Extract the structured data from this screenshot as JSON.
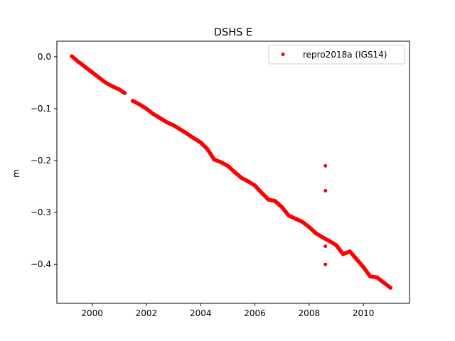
{
  "chart_data": {
    "type": "scatter",
    "title": "DSHS E",
    "xlabel": "",
    "ylabel": "m",
    "xlim": [
      1998.7,
      2011.7
    ],
    "ylim": [
      -0.475,
      0.03
    ],
    "xticks": [
      2000,
      2002,
      2004,
      2006,
      2008,
      2010
    ],
    "xtick_labels": [
      "2000",
      "2002",
      "2004",
      "2006",
      "2008",
      "2010"
    ],
    "yticks": [
      0.0,
      -0.1,
      -0.2,
      -0.3,
      -0.4
    ],
    "ytick_labels": [
      "0.0",
      "−0.1",
      "−0.2",
      "−0.3",
      "−0.4"
    ],
    "grid": false,
    "legend_position": "top-right",
    "colors": {
      "series": "#ff0000"
    },
    "series": [
      {
        "name": "repro2018a (IGS14)",
        "marker": "circle",
        "segments": [
          {
            "x": [
              1999.25,
              1999.5,
              1999.75,
              2000.0,
              2000.25,
              2000.5,
              2000.75,
              2001.0,
              2001.2
            ],
            "y": [
              0.001,
              -0.01,
              -0.02,
              -0.03,
              -0.04,
              -0.05,
              -0.057,
              -0.063,
              -0.07
            ]
          },
          {
            "x": [
              2001.5,
              2001.75,
              2002.0,
              2002.25,
              2002.5,
              2002.75,
              2003.0,
              2003.25,
              2003.5,
              2003.75,
              2004.0,
              2004.25,
              2004.5,
              2004.75,
              2005.0,
              2005.25,
              2005.5,
              2005.75,
              2006.0,
              2006.25,
              2006.5,
              2006.75,
              2007.0,
              2007.25,
              2007.5,
              2007.75,
              2008.0,
              2008.25,
              2008.5,
              2008.75,
              2009.0,
              2009.25,
              2009.5,
              2009.75,
              2010.0,
              2010.25,
              2010.5,
              2010.75,
              2011.0
            ],
            "y": [
              -0.085,
              -0.092,
              -0.1,
              -0.11,
              -0.118,
              -0.126,
              -0.132,
              -0.14,
              -0.148,
              -0.157,
              -0.165,
              -0.178,
              -0.198,
              -0.203,
              -0.21,
              -0.222,
              -0.233,
              -0.24,
              -0.248,
              -0.262,
              -0.275,
              -0.278,
              -0.29,
              -0.306,
              -0.312,
              -0.318,
              -0.328,
              -0.34,
              -0.348,
              -0.355,
              -0.363,
              -0.38,
              -0.375,
              -0.39,
              -0.405,
              -0.423,
              -0.425,
              -0.435,
              -0.445
            ]
          }
        ],
        "outliers": {
          "x": [
            2008.6,
            2008.6,
            2008.6,
            2008.6
          ],
          "y": [
            -0.21,
            -0.258,
            -0.365,
            -0.4
          ]
        }
      }
    ]
  }
}
